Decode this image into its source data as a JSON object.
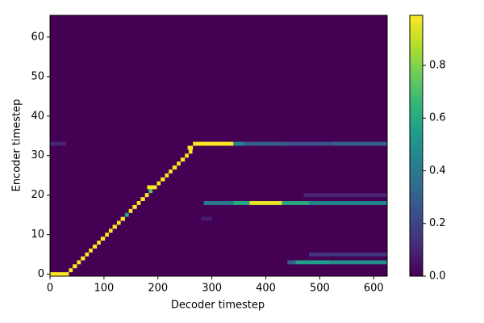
{
  "chart_data": {
    "type": "heatmap",
    "colormap": "viridis",
    "xlabel": "Decoder timestep",
    "ylabel": "Encoder timestep",
    "xlim": [
      0,
      625
    ],
    "ylim": [
      -0.5,
      65.5
    ],
    "xticks": [
      0,
      100,
      200,
      300,
      400,
      500,
      600
    ],
    "yticks": [
      0,
      10,
      20,
      30,
      40,
      50,
      60
    ],
    "clim": [
      0,
      0.99
    ],
    "cticks": [
      {
        "value": 0,
        "label": "0.0"
      },
      0.2,
      0.4,
      0.6,
      0.8
    ],
    "cells": [
      [
        0,
        35,
        0,
        0.99
      ],
      [
        0,
        30,
        33,
        0.1
      ],
      [
        35,
        42,
        1,
        0.99
      ],
      [
        42,
        50,
        2,
        0.99
      ],
      [
        50,
        57,
        3,
        0.99
      ],
      [
        57,
        65,
        4,
        0.99
      ],
      [
        65,
        72,
        5,
        0.99
      ],
      [
        72,
        79,
        6,
        0.99
      ],
      [
        79,
        87,
        7,
        0.99
      ],
      [
        87,
        94,
        8,
        0.99
      ],
      [
        94,
        102,
        9,
        0.99
      ],
      [
        102,
        109,
        10,
        0.99
      ],
      [
        109,
        116,
        11,
        0.99
      ],
      [
        116,
        124,
        12,
        0.99
      ],
      [
        124,
        131,
        13,
        0.99
      ],
      [
        131,
        139,
        14,
        0.99
      ],
      [
        139,
        146,
        15,
        0.6
      ],
      [
        146,
        153,
        16,
        0.99
      ],
      [
        153,
        161,
        17,
        0.99
      ],
      [
        161,
        168,
        18,
        0.99
      ],
      [
        168,
        176,
        19,
        0.99
      ],
      [
        176,
        183,
        20,
        0.99
      ],
      [
        183,
        190,
        21,
        0.7
      ],
      [
        180,
        198,
        22,
        0.99
      ],
      [
        198,
        205,
        23,
        0.99
      ],
      [
        205,
        213,
        24,
        0.99
      ],
      [
        213,
        220,
        25,
        0.99
      ],
      [
        220,
        227,
        26,
        0.99
      ],
      [
        227,
        235,
        27,
        0.99
      ],
      [
        235,
        242,
        28,
        0.99
      ],
      [
        242,
        250,
        29,
        0.99
      ],
      [
        250,
        257,
        30,
        0.99
      ],
      [
        257,
        264,
        31,
        0.99
      ],
      [
        255,
        265,
        32,
        0.99
      ],
      [
        265,
        340,
        33,
        0.99
      ],
      [
        340,
        360,
        33,
        0.45
      ],
      [
        360,
        440,
        33,
        0.3
      ],
      [
        440,
        520,
        33,
        0.25
      ],
      [
        520,
        625,
        33,
        0.3
      ],
      [
        280,
        300,
        14,
        0.08
      ],
      [
        285,
        340,
        18,
        0.4
      ],
      [
        340,
        370,
        18,
        0.6
      ],
      [
        370,
        430,
        18,
        0.95
      ],
      [
        430,
        480,
        18,
        0.6
      ],
      [
        480,
        625,
        18,
        0.45
      ],
      [
        470,
        625,
        20,
        0.1
      ],
      [
        440,
        455,
        3,
        0.3
      ],
      [
        455,
        520,
        3,
        0.55
      ],
      [
        520,
        625,
        3,
        0.5
      ],
      [
        480,
        625,
        5,
        0.15
      ]
    ]
  }
}
